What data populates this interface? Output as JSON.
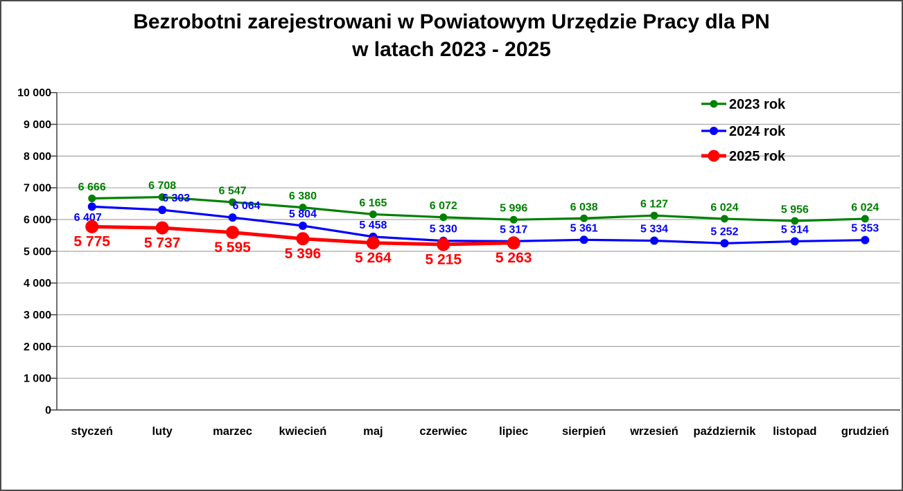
{
  "title": {
    "line1": "Bezrobotni zarejestrowani w Powiatowym Urzędzie Pracy dla PN",
    "line2": "w latach 2023 - 2025"
  },
  "chart_data": {
    "type": "line",
    "title": "Bezrobotni zarejestrowani w Powiatowym Urzędzie Pracy dla PN w latach 2023 - 2025",
    "categories": [
      "styczeń",
      "luty",
      "marzec",
      "kwiecień",
      "maj",
      "czerwiec",
      "lipiec",
      "sierpień",
      "wrzesień",
      "październik",
      "listopad",
      "grudzień"
    ],
    "series": [
      {
        "name": "2023 rok",
        "color": "#008000",
        "values": [
          6666,
          6708,
          6547,
          6380,
          6165,
          6072,
          5996,
          6038,
          6127,
          6024,
          5956,
          6024
        ]
      },
      {
        "name": "2024 rok",
        "color": "#0000ff",
        "values": [
          6407,
          6303,
          6064,
          5804,
          5458,
          5330,
          5317,
          5361,
          5334,
          5252,
          5314,
          5353
        ]
      },
      {
        "name": "2025 rok",
        "color": "#ff0000",
        "values": [
          5775,
          5737,
          5595,
          5396,
          5264,
          5215,
          5263
        ]
      }
    ],
    "xlabel": "",
    "ylabel": "",
    "ylim": [
      0,
      10000
    ],
    "ytick_step": 1000,
    "ytick_labels": [
      "0",
      "1 000",
      "2 000",
      "3 000",
      "4 000",
      "5 000",
      "6 000",
      "7 000",
      "8 000",
      "9 000",
      "10 000"
    ],
    "grid": "horizontal",
    "gridline_color": "#a6a6a6",
    "axis_color": "#404040",
    "legend_position": "top-right",
    "number_format": "space-thousands",
    "data_labels": true
  }
}
